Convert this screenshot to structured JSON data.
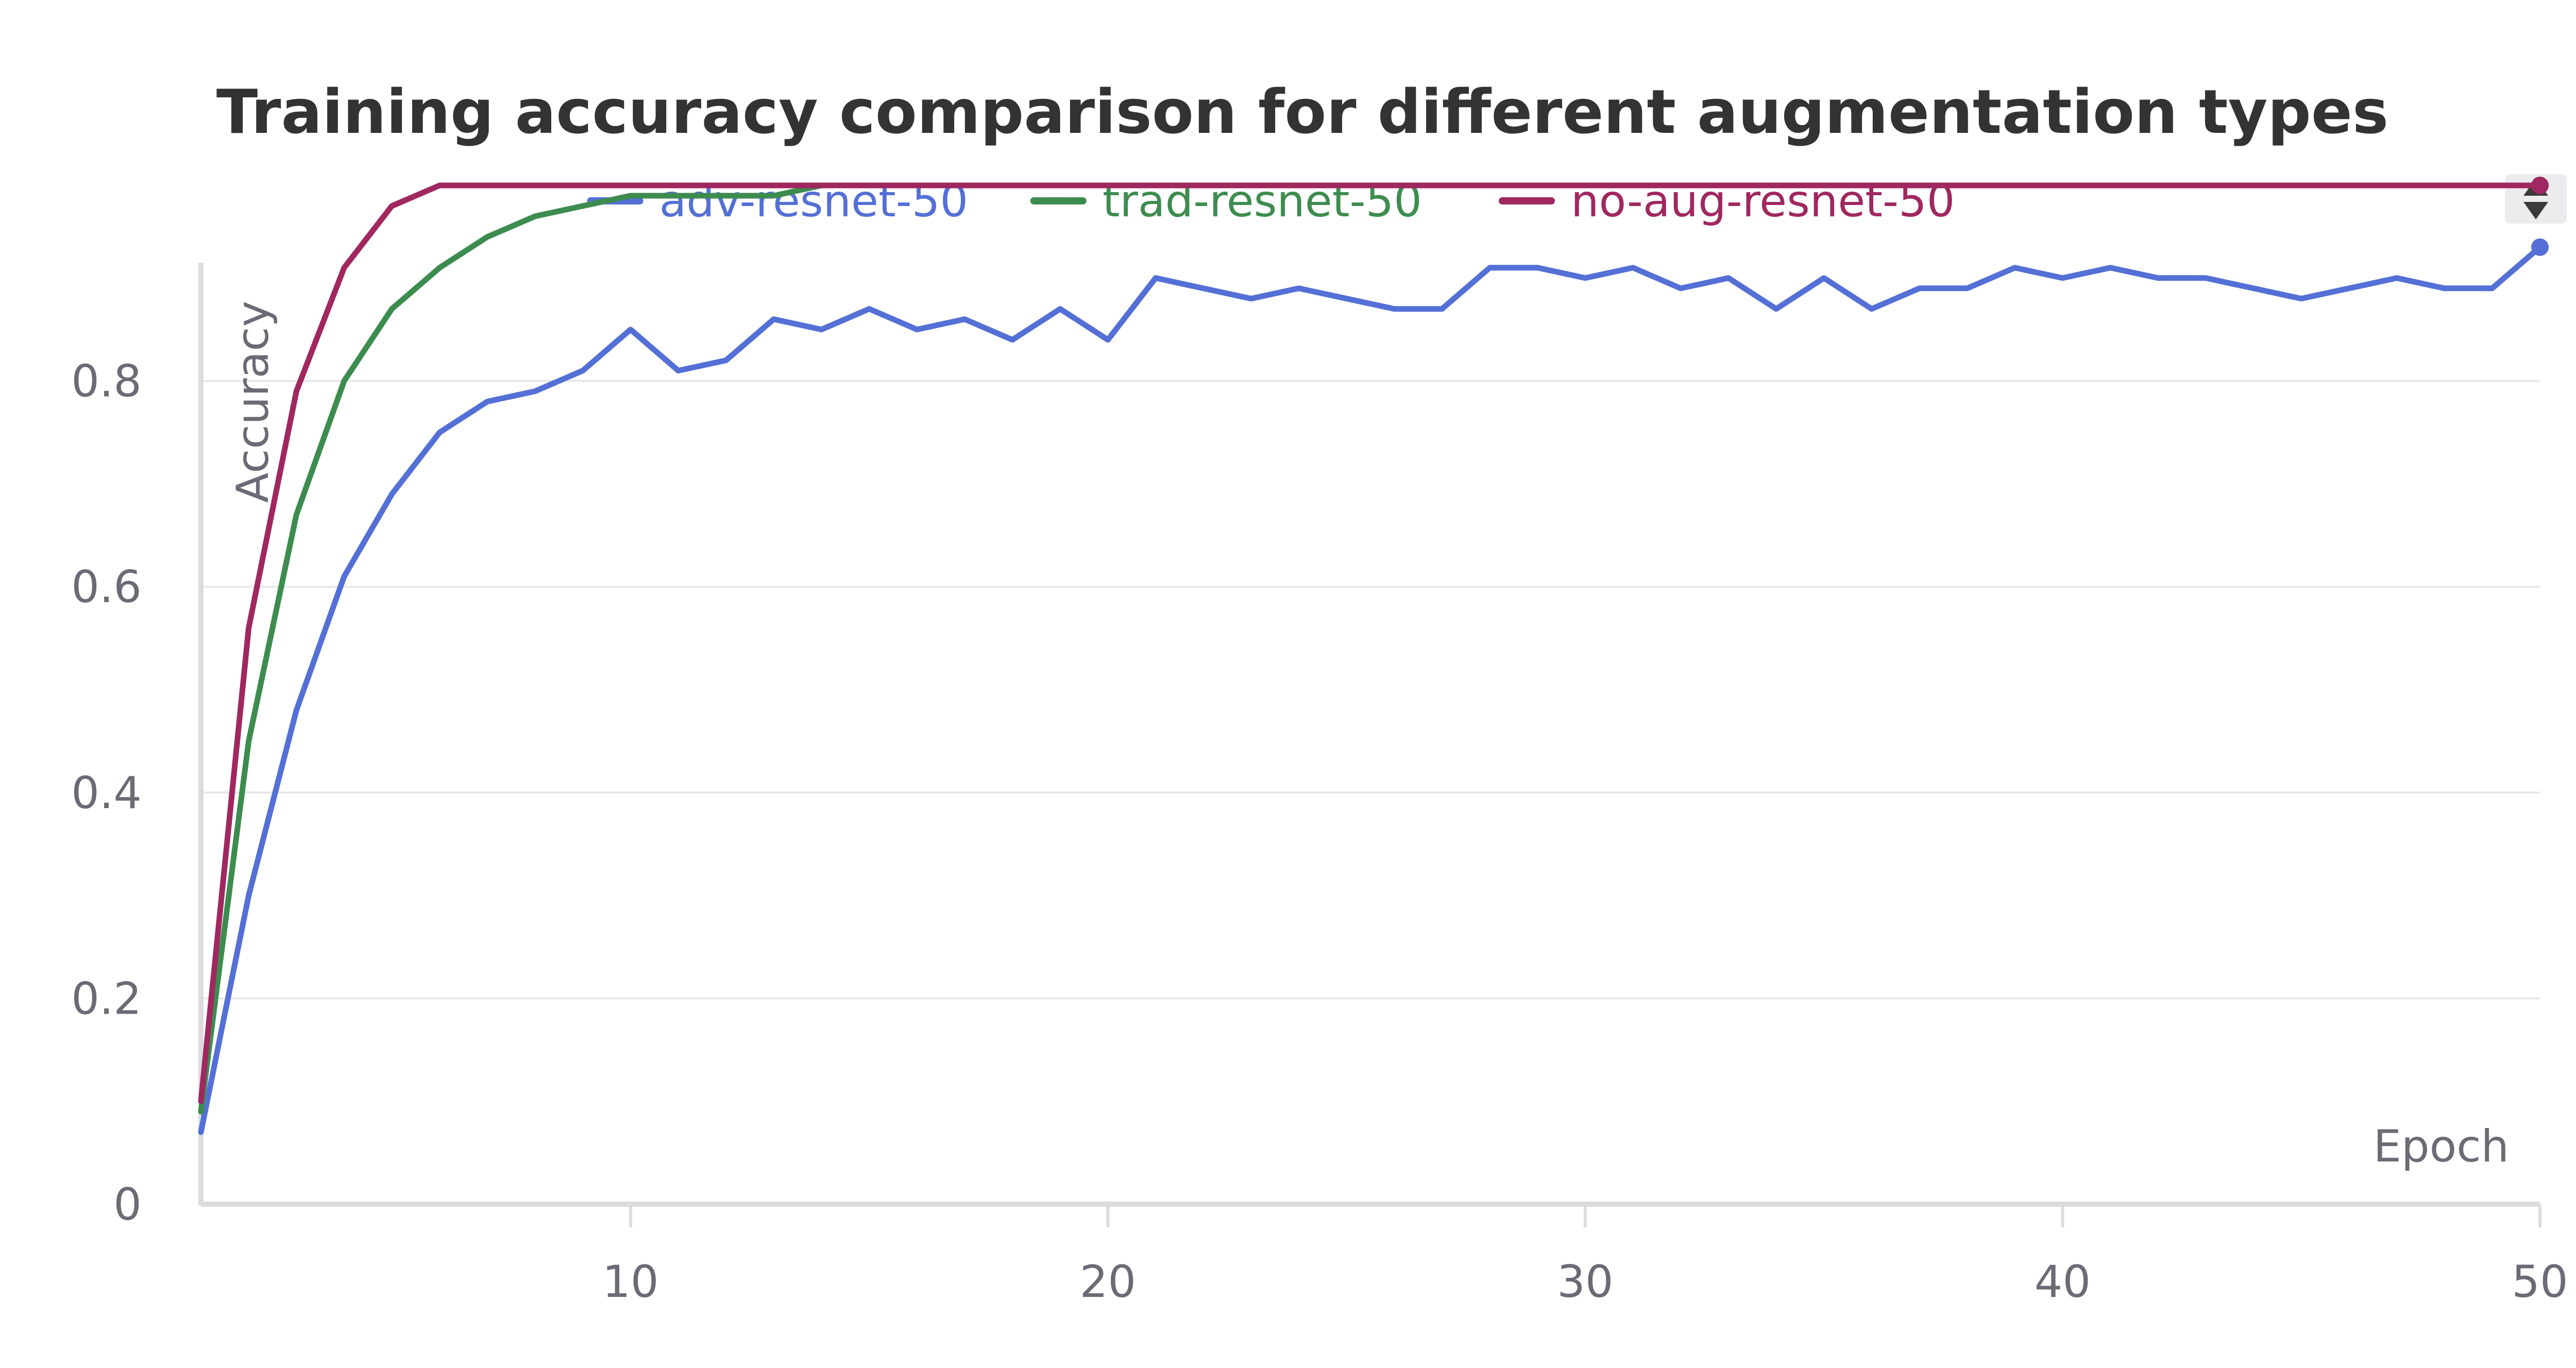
{
  "chart_data": {
    "type": "line",
    "title": "Training accuracy comparison for different augmentation types",
    "xlabel": "Epoch",
    "ylabel": "Accuracy",
    "xlim": [
      1,
      50
    ],
    "ylim": [
      0,
      1.0
    ],
    "x_ticks": [
      10,
      20,
      30,
      40,
      50
    ],
    "y_ticks": [
      0,
      0.2,
      0.4,
      0.6,
      0.8
    ],
    "grid": true,
    "legend_position": "top",
    "x": [
      1,
      2,
      3,
      4,
      5,
      6,
      7,
      8,
      9,
      10,
      11,
      12,
      13,
      14,
      15,
      16,
      17,
      18,
      19,
      20,
      21,
      22,
      23,
      24,
      25,
      26,
      27,
      28,
      29,
      30,
      31,
      32,
      33,
      34,
      35,
      36,
      37,
      38,
      39,
      40,
      41,
      42,
      43,
      44,
      45,
      46,
      47,
      48,
      49,
      50
    ],
    "series": [
      {
        "name": "adv-resnet-50",
        "color": "#5470d6",
        "values": [
          0.07,
          0.3,
          0.48,
          0.61,
          0.69,
          0.75,
          0.78,
          0.79,
          0.81,
          0.85,
          0.81,
          0.82,
          0.86,
          0.85,
          0.87,
          0.85,
          0.86,
          0.84,
          0.87,
          0.84,
          0.9,
          0.89,
          0.88,
          0.89,
          0.88,
          0.87,
          0.87,
          0.91,
          0.91,
          0.9,
          0.91,
          0.89,
          0.9,
          0.87,
          0.9,
          0.87,
          0.89,
          0.89,
          0.91,
          0.9,
          0.91,
          0.9,
          0.9,
          0.89,
          0.88,
          0.89,
          0.9,
          0.89,
          0.89,
          0.93
        ]
      },
      {
        "name": "trad-resnet-50",
        "color": "#3d8c4f",
        "values": [
          0.09,
          0.45,
          0.67,
          0.8,
          0.87,
          0.91,
          0.94,
          0.96,
          0.97,
          0.98,
          0.98,
          0.98,
          0.98,
          0.99,
          0.99,
          0.99,
          0.99,
          0.99,
          0.99,
          0.99,
          0.99,
          0.99,
          0.99,
          0.99,
          0.99,
          0.99,
          0.99,
          0.99,
          0.99,
          0.99,
          0.99,
          0.99,
          0.99,
          0.99,
          0.99,
          0.99,
          0.99,
          0.99,
          0.99,
          0.99,
          0.99,
          0.99,
          0.99,
          0.99,
          0.99,
          0.99,
          0.99,
          0.99,
          0.99,
          0.99
        ]
      },
      {
        "name": "no-aug-resnet-50",
        "color": "#a0275f",
        "values": [
          0.1,
          0.56,
          0.79,
          0.91,
          0.97,
          0.99,
          0.99,
          0.99,
          0.99,
          0.99,
          0.99,
          0.99,
          0.99,
          0.99,
          0.99,
          0.99,
          0.99,
          0.99,
          0.99,
          0.99,
          0.99,
          0.99,
          0.99,
          0.99,
          0.99,
          0.99,
          0.99,
          0.99,
          0.99,
          0.99,
          0.99,
          0.99,
          0.99,
          0.99,
          0.99,
          0.99,
          0.99,
          0.99,
          0.99,
          0.99,
          0.99,
          0.99,
          0.99,
          0.99,
          0.99,
          0.99,
          0.99,
          0.99,
          0.99,
          0.99
        ]
      }
    ]
  },
  "colors": {
    "grid": "#e8e8ea",
    "axis": "#dcdcdf",
    "tick_text": "#6b6b76",
    "title": "#333333",
    "control_bg": "#ececee",
    "control_fg": "#3a3a3a"
  },
  "icons": {
    "sort_toggle": "sort-toggle-icon"
  }
}
